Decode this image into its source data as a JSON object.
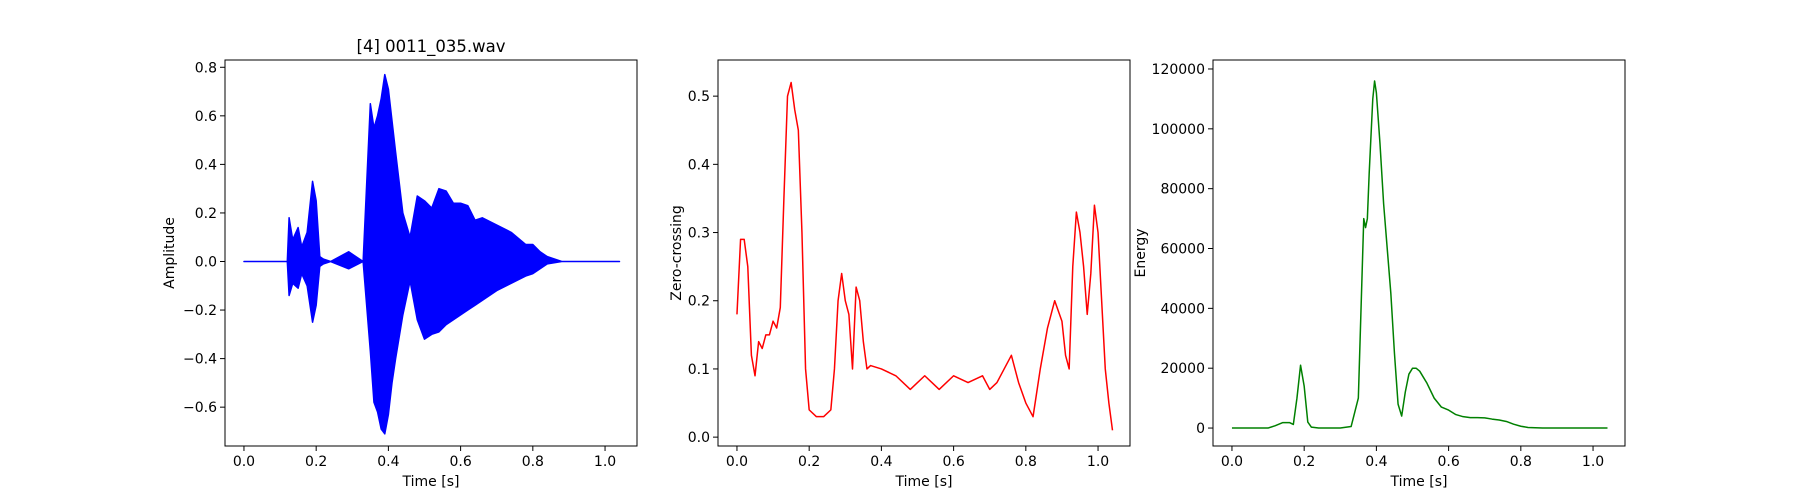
{
  "chart_data": [
    {
      "type": "line",
      "title": "[4] 0011_035.wav",
      "xlabel": "Time [s]",
      "ylabel": "Amplitude",
      "xlim": [
        -0.0525,
        1.0885
      ],
      "ylim": [
        -0.76,
        0.83
      ],
      "xticks": [
        0.0,
        0.2,
        0.4,
        0.6,
        0.8,
        1.0
      ],
      "xtick_labels": [
        "0.0",
        "0.2",
        "0.4",
        "0.6",
        "0.8",
        "1.0"
      ],
      "yticks": [
        -0.6,
        -0.4,
        -0.2,
        0.0,
        0.2,
        0.4,
        0.6,
        0.8
      ],
      "ytick_labels": [
        "−0.6",
        "−0.4",
        "−0.2",
        "0.0",
        "0.2",
        "0.4",
        "0.6",
        "0.8"
      ],
      "grid": false,
      "color": "#0000ff",
      "series": [
        {
          "x": [
            0.0,
            0.12,
            0.125,
            0.135,
            0.15,
            0.16,
            0.175,
            0.19,
            0.2,
            0.21,
            0.22,
            0.24,
            0.29,
            0.33,
            0.35,
            0.36,
            0.37,
            0.38,
            0.39,
            0.4,
            0.41,
            0.42,
            0.44,
            0.46,
            0.48,
            0.5,
            0.52,
            0.54,
            0.56,
            0.58,
            0.6,
            0.62,
            0.64,
            0.66,
            0.7,
            0.74,
            0.78,
            0.8,
            0.82,
            0.84,
            0.88,
            1.04
          ],
          "upper": [
            0.0,
            0.0,
            0.18,
            0.09,
            0.14,
            0.06,
            0.12,
            0.33,
            0.25,
            0.02,
            0.01,
            0.0,
            0.04,
            0.0,
            0.65,
            0.55,
            0.6,
            0.67,
            0.77,
            0.71,
            0.58,
            0.45,
            0.2,
            0.1,
            0.27,
            0.25,
            0.22,
            0.3,
            0.29,
            0.24,
            0.24,
            0.23,
            0.17,
            0.18,
            0.15,
            0.12,
            0.07,
            0.07,
            0.04,
            0.02,
            0.0,
            0.0
          ],
          "lower": [
            0.0,
            0.0,
            -0.14,
            -0.09,
            -0.11,
            -0.05,
            -0.1,
            -0.25,
            -0.18,
            -0.02,
            -0.01,
            0.0,
            -0.03,
            0.0,
            -0.37,
            -0.58,
            -0.62,
            -0.69,
            -0.71,
            -0.63,
            -0.5,
            -0.4,
            -0.22,
            -0.08,
            -0.24,
            -0.32,
            -0.3,
            -0.29,
            -0.26,
            -0.24,
            -0.22,
            -0.2,
            -0.18,
            -0.16,
            -0.12,
            -0.09,
            -0.06,
            -0.05,
            -0.03,
            -0.01,
            0.0,
            0.0
          ]
        }
      ]
    },
    {
      "type": "line",
      "title": "",
      "xlabel": "Time [s]",
      "ylabel": "Zero-crossing",
      "xlim": [
        -0.0525,
        1.0885
      ],
      "ylim": [
        -0.013,
        0.553
      ],
      "xticks": [
        0.0,
        0.2,
        0.4,
        0.6,
        0.8,
        1.0
      ],
      "xtick_labels": [
        "0.0",
        "0.2",
        "0.4",
        "0.6",
        "0.8",
        "1.0"
      ],
      "yticks": [
        0.0,
        0.1,
        0.2,
        0.3,
        0.4,
        0.5
      ],
      "ytick_labels": [
        "0.0",
        "0.1",
        "0.2",
        "0.3",
        "0.4",
        "0.5"
      ],
      "grid": false,
      "color": "#ff0000",
      "series": [
        {
          "x": [
            0.0,
            0.01,
            0.02,
            0.03,
            0.04,
            0.05,
            0.06,
            0.07,
            0.08,
            0.09,
            0.1,
            0.11,
            0.12,
            0.13,
            0.14,
            0.15,
            0.16,
            0.17,
            0.18,
            0.19,
            0.2,
            0.22,
            0.24,
            0.26,
            0.27,
            0.28,
            0.29,
            0.3,
            0.31,
            0.32,
            0.33,
            0.34,
            0.35,
            0.36,
            0.37,
            0.4,
            0.44,
            0.48,
            0.5,
            0.52,
            0.54,
            0.56,
            0.6,
            0.64,
            0.68,
            0.7,
            0.72,
            0.74,
            0.76,
            0.78,
            0.8,
            0.82,
            0.84,
            0.86,
            0.88,
            0.9,
            0.91,
            0.92,
            0.93,
            0.94,
            0.95,
            0.96,
            0.97,
            0.98,
            0.99,
            1.0,
            1.01,
            1.02,
            1.03,
            1.04
          ],
          "y": [
            0.18,
            0.29,
            0.29,
            0.25,
            0.12,
            0.09,
            0.14,
            0.13,
            0.15,
            0.15,
            0.17,
            0.16,
            0.19,
            0.35,
            0.5,
            0.52,
            0.48,
            0.45,
            0.3,
            0.1,
            0.04,
            0.03,
            0.03,
            0.04,
            0.1,
            0.2,
            0.24,
            0.2,
            0.18,
            0.1,
            0.22,
            0.2,
            0.14,
            0.1,
            0.105,
            0.1,
            0.09,
            0.07,
            0.08,
            0.09,
            0.08,
            0.07,
            0.09,
            0.08,
            0.09,
            0.07,
            0.08,
            0.1,
            0.12,
            0.08,
            0.05,
            0.03,
            0.1,
            0.16,
            0.2,
            0.17,
            0.12,
            0.1,
            0.25,
            0.33,
            0.3,
            0.25,
            0.18,
            0.24,
            0.34,
            0.3,
            0.2,
            0.1,
            0.05,
            0.01
          ]
        }
      ]
    },
    {
      "type": "line",
      "title": "",
      "xlabel": "Time [s]",
      "ylabel": "Energy",
      "xlim": [
        -0.0525,
        1.0885
      ],
      "ylim": [
        -6000,
        123000
      ],
      "xticks": [
        0.0,
        0.2,
        0.4,
        0.6,
        0.8,
        1.0
      ],
      "xtick_labels": [
        "0.0",
        "0.2",
        "0.4",
        "0.6",
        "0.8",
        "1.0"
      ],
      "yticks": [
        0,
        20000,
        40000,
        60000,
        80000,
        100000,
        120000
      ],
      "ytick_labels": [
        "0",
        "20000",
        "40000",
        "60000",
        "80000",
        "100000",
        "120000"
      ],
      "grid": false,
      "color": "#008000",
      "series": [
        {
          "x": [
            0.0,
            0.1,
            0.12,
            0.14,
            0.16,
            0.17,
            0.18,
            0.19,
            0.2,
            0.21,
            0.22,
            0.24,
            0.3,
            0.33,
            0.35,
            0.36,
            0.365,
            0.37,
            0.375,
            0.38,
            0.39,
            0.395,
            0.4,
            0.41,
            0.42,
            0.43,
            0.44,
            0.45,
            0.46,
            0.47,
            0.48,
            0.49,
            0.5,
            0.51,
            0.52,
            0.53,
            0.54,
            0.56,
            0.58,
            0.6,
            0.62,
            0.64,
            0.66,
            0.68,
            0.7,
            0.72,
            0.74,
            0.76,
            0.78,
            0.8,
            0.82,
            0.86,
            1.04
          ],
          "y": [
            0,
            0,
            800,
            1800,
            1800,
            1200,
            10000,
            21000,
            14000,
            2000,
            300,
            0,
            0,
            500,
            10000,
            50000,
            70000,
            67000,
            70000,
            85000,
            110000,
            116000,
            112000,
            95000,
            75000,
            60000,
            45000,
            25000,
            8000,
            4000,
            12000,
            18000,
            20000,
            20000,
            19000,
            17000,
            15000,
            10000,
            7000,
            6000,
            4500,
            3800,
            3500,
            3500,
            3400,
            3000,
            2700,
            2200,
            1300,
            600,
            200,
            0,
            0
          ]
        }
      ]
    }
  ]
}
